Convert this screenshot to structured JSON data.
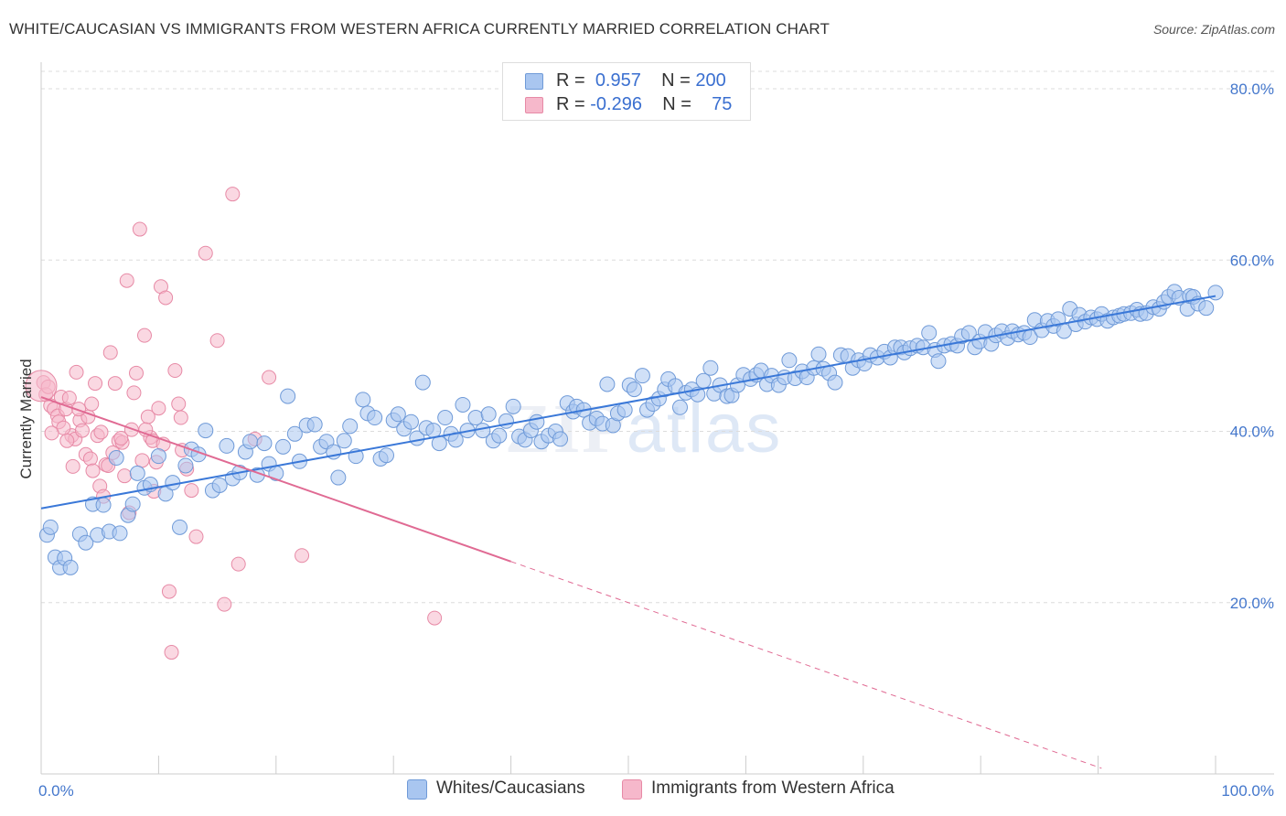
{
  "title": "WHITE/CAUCASIAN VS IMMIGRANTS FROM WESTERN AFRICA CURRENTLY MARRIED CORRELATION CHART",
  "source": "Source: ZipAtlas.com",
  "watermark": {
    "zip": "ZIP",
    "atlas": "atlas"
  },
  "legend": {
    "rows": [
      {
        "r_label": "R =",
        "r_value": "0.957",
        "n_label": "N =",
        "n_value": "200",
        "color": "#a9c6f0"
      },
      {
        "r_label": "R =",
        "r_value": "-0.296",
        "n_label": "N =",
        "n_value": "75",
        "color": "#f6b8cb"
      }
    ]
  },
  "bottom_legend": [
    {
      "label": "Whites/Caucasians",
      "color": "#a9c6f0"
    },
    {
      "label": "Immigrants from Western Africa",
      "color": "#f6b8cb"
    }
  ],
  "chart_data": {
    "type": "scatter",
    "title": "WHITE/CAUCASIAN VS IMMIGRANTS FROM WESTERN AFRICA CURRENTLY MARRIED CORRELATION CHART",
    "xlabel": "",
    "ylabel": "Currently Married",
    "xlim": [
      0,
      100
    ],
    "ylim": [
      0,
      80
    ],
    "x_tick_labels": [
      "0.0%",
      "100.0%"
    ],
    "y_ticks": [
      20,
      40,
      60,
      80
    ],
    "y_tick_labels": [
      "20.0%",
      "40.0%",
      "60.0%",
      "80.0%"
    ],
    "grid": true,
    "legend_position": "top-center",
    "colors": {
      "blue_fill": "#a9c6f0",
      "blue_stroke": "#6f9ad8",
      "blue_line": "#3a78d8",
      "pink_fill": "#f6b8cb",
      "pink_stroke": "#e78aa6",
      "pink_line": "#e06a93"
    },
    "series": [
      {
        "name": "Whites/Caucasians",
        "r": 0.957,
        "n": 200,
        "trend": {
          "x": [
            0,
            100
          ],
          "y": [
            31.0,
            55.8
          ],
          "dashed_from": null
        },
        "points": [
          [
            0.5,
            27.9
          ],
          [
            0.8,
            28.8
          ],
          [
            1.2,
            25.3
          ],
          [
            1.6,
            24.1
          ],
          [
            2.0,
            25.2
          ],
          [
            2.5,
            24.1
          ],
          [
            3.3,
            28.0
          ],
          [
            3.8,
            27.0
          ],
          [
            4.4,
            31.5
          ],
          [
            4.8,
            27.9
          ],
          [
            5.3,
            31.4
          ],
          [
            5.8,
            28.3
          ],
          [
            6.4,
            36.9
          ],
          [
            6.7,
            28.1
          ],
          [
            7.4,
            30.2
          ],
          [
            7.8,
            31.5
          ],
          [
            8.2,
            35.1
          ],
          [
            8.8,
            33.4
          ],
          [
            9.3,
            33.8
          ],
          [
            10.0,
            37.1
          ],
          [
            10.6,
            32.7
          ],
          [
            11.2,
            34.0
          ],
          [
            11.8,
            28.8
          ],
          [
            12.3,
            36.0
          ],
          [
            12.8,
            37.9
          ],
          [
            13.4,
            37.3
          ],
          [
            14.0,
            40.1
          ],
          [
            14.6,
            33.1
          ],
          [
            15.2,
            33.7
          ],
          [
            15.8,
            38.3
          ],
          [
            16.3,
            34.5
          ],
          [
            16.9,
            35.2
          ],
          [
            17.4,
            37.6
          ],
          [
            17.8,
            38.8
          ],
          [
            18.4,
            34.9
          ],
          [
            19.0,
            38.6
          ],
          [
            19.4,
            36.2
          ],
          [
            20.0,
            35.1
          ],
          [
            20.6,
            38.2
          ],
          [
            21.0,
            44.1
          ],
          [
            21.6,
            39.7
          ],
          [
            22.0,
            36.5
          ],
          [
            22.6,
            40.7
          ],
          [
            23.3,
            40.8
          ],
          [
            23.8,
            38.2
          ],
          [
            24.3,
            38.8
          ],
          [
            24.9,
            37.6
          ],
          [
            25.3,
            34.6
          ],
          [
            25.8,
            38.9
          ],
          [
            26.3,
            40.6
          ],
          [
            26.8,
            37.1
          ],
          [
            27.4,
            43.7
          ],
          [
            27.8,
            42.1
          ],
          [
            28.4,
            41.6
          ],
          [
            28.9,
            36.8
          ],
          [
            29.4,
            37.2
          ],
          [
            30.0,
            41.3
          ],
          [
            30.4,
            42.0
          ],
          [
            30.9,
            40.3
          ],
          [
            31.5,
            41.1
          ],
          [
            32.0,
            39.2
          ],
          [
            32.5,
            45.7
          ],
          [
            32.8,
            40.4
          ],
          [
            33.4,
            40.1
          ],
          [
            33.9,
            38.6
          ],
          [
            34.4,
            41.6
          ],
          [
            34.9,
            39.7
          ],
          [
            35.3,
            39.0
          ],
          [
            35.9,
            43.1
          ],
          [
            36.3,
            40.1
          ],
          [
            37.0,
            41.6
          ],
          [
            37.6,
            40.1
          ],
          [
            38.1,
            42.0
          ],
          [
            38.5,
            38.9
          ],
          [
            39.0,
            39.5
          ],
          [
            39.6,
            41.2
          ],
          [
            40.2,
            42.9
          ],
          [
            40.7,
            39.4
          ],
          [
            41.2,
            39.0
          ],
          [
            41.7,
            40.1
          ],
          [
            42.2,
            41.1
          ],
          [
            42.6,
            38.8
          ],
          [
            43.2,
            39.5
          ],
          [
            43.8,
            40.0
          ],
          [
            44.2,
            39.1
          ],
          [
            44.8,
            43.3
          ],
          [
            45.3,
            42.3
          ],
          [
            45.6,
            42.9
          ],
          [
            46.2,
            42.5
          ],
          [
            46.7,
            41.0
          ],
          [
            47.3,
            41.5
          ],
          [
            47.8,
            40.9
          ],
          [
            48.2,
            45.5
          ],
          [
            48.7,
            40.7
          ],
          [
            49.1,
            42.1
          ],
          [
            49.7,
            42.5
          ],
          [
            50.1,
            45.4
          ],
          [
            50.5,
            44.9
          ],
          [
            51.2,
            46.5
          ],
          [
            51.6,
            42.5
          ],
          [
            52.1,
            43.2
          ],
          [
            52.6,
            43.8
          ],
          [
            53.1,
            44.9
          ],
          [
            53.4,
            46.1
          ],
          [
            54.0,
            45.3
          ],
          [
            54.4,
            42.8
          ],
          [
            54.9,
            44.5
          ],
          [
            55.4,
            44.9
          ],
          [
            55.9,
            44.3
          ],
          [
            56.4,
            45.9
          ],
          [
            57.0,
            47.4
          ],
          [
            57.3,
            44.4
          ],
          [
            57.8,
            45.4
          ],
          [
            58.4,
            44.1
          ],
          [
            58.8,
            44.2
          ],
          [
            59.3,
            45.4
          ],
          [
            59.8,
            46.6
          ],
          [
            60.4,
            46.1
          ],
          [
            60.9,
            46.6
          ],
          [
            61.3,
            47.1
          ],
          [
            61.8,
            45.5
          ],
          [
            62.2,
            46.5
          ],
          [
            62.8,
            45.4
          ],
          [
            63.3,
            46.3
          ],
          [
            63.7,
            48.3
          ],
          [
            64.2,
            46.2
          ],
          [
            64.8,
            47.0
          ],
          [
            65.2,
            46.3
          ],
          [
            65.8,
            47.4
          ],
          [
            66.2,
            49.0
          ],
          [
            66.6,
            47.3
          ],
          [
            67.1,
            46.8
          ],
          [
            67.6,
            45.7
          ],
          [
            68.1,
            48.9
          ],
          [
            68.7,
            48.8
          ],
          [
            69.1,
            47.4
          ],
          [
            69.6,
            48.3
          ],
          [
            70.1,
            47.9
          ],
          [
            70.6,
            48.9
          ],
          [
            71.2,
            48.6
          ],
          [
            71.8,
            49.3
          ],
          [
            72.3,
            48.6
          ],
          [
            72.7,
            49.8
          ],
          [
            73.2,
            49.8
          ],
          [
            73.5,
            49.2
          ],
          [
            74.0,
            49.7
          ],
          [
            74.6,
            50.0
          ],
          [
            75.1,
            49.8
          ],
          [
            75.6,
            51.5
          ],
          [
            76.1,
            49.5
          ],
          [
            76.4,
            48.2
          ],
          [
            76.9,
            50.0
          ],
          [
            77.5,
            50.2
          ],
          [
            78.0,
            50.0
          ],
          [
            78.4,
            51.1
          ],
          [
            79.0,
            51.5
          ],
          [
            79.5,
            49.8
          ],
          [
            79.9,
            50.5
          ],
          [
            80.4,
            51.6
          ],
          [
            80.9,
            50.2
          ],
          [
            81.3,
            51.2
          ],
          [
            81.8,
            51.7
          ],
          [
            82.3,
            50.9
          ],
          [
            82.7,
            51.7
          ],
          [
            83.2,
            51.3
          ],
          [
            83.7,
            51.5
          ],
          [
            84.2,
            51.0
          ],
          [
            84.6,
            53.0
          ],
          [
            85.2,
            51.8
          ],
          [
            85.7,
            52.9
          ],
          [
            86.2,
            52.3
          ],
          [
            86.6,
            53.1
          ],
          [
            87.1,
            51.7
          ],
          [
            87.6,
            54.3
          ],
          [
            88.1,
            52.5
          ],
          [
            88.4,
            53.6
          ],
          [
            88.9,
            52.8
          ],
          [
            89.4,
            53.3
          ],
          [
            89.9,
            53.1
          ],
          [
            90.3,
            53.7
          ],
          [
            90.8,
            52.9
          ],
          [
            91.3,
            53.3
          ],
          [
            91.8,
            53.5
          ],
          [
            92.2,
            53.7
          ],
          [
            92.8,
            53.8
          ],
          [
            93.3,
            54.2
          ],
          [
            93.6,
            53.7
          ],
          [
            94.1,
            53.8
          ],
          [
            94.7,
            54.5
          ],
          [
            95.2,
            54.3
          ],
          [
            95.6,
            55.1
          ],
          [
            96.0,
            55.7
          ],
          [
            96.5,
            56.3
          ],
          [
            96.9,
            55.6
          ],
          [
            97.6,
            54.3
          ],
          [
            97.8,
            55.8
          ],
          [
            98.1,
            55.7
          ],
          [
            98.5,
            54.9
          ],
          [
            99.2,
            54.4
          ],
          [
            100.0,
            56.2
          ]
        ]
      },
      {
        "name": "Immigrants from Western Africa",
        "r": -0.296,
        "n": 75,
        "trend": {
          "x": [
            0,
            100
          ],
          "y": [
            44.0,
            -4.0
          ],
          "dashed_from": 40
        },
        "points": [
          [
            0.2,
            45.7
          ],
          [
            0.4,
            44.3
          ],
          [
            0.6,
            45.2
          ],
          [
            0.8,
            43.0
          ],
          [
            1.1,
            42.6
          ],
          [
            1.4,
            41.8
          ],
          [
            1.5,
            41.1
          ],
          [
            1.7,
            44.0
          ],
          [
            2.1,
            42.6
          ],
          [
            2.4,
            43.9
          ],
          [
            2.6,
            39.5
          ],
          [
            2.9,
            39.1
          ],
          [
            3.0,
            46.9
          ],
          [
            3.3,
            41.3
          ],
          [
            3.5,
            40.1
          ],
          [
            3.8,
            37.3
          ],
          [
            4.0,
            41.7
          ],
          [
            4.2,
            36.8
          ],
          [
            4.4,
            35.4
          ],
          [
            4.6,
            45.6
          ],
          [
            4.8,
            39.5
          ],
          [
            5.0,
            33.6
          ],
          [
            5.3,
            32.4
          ],
          [
            5.5,
            36.1
          ],
          [
            5.7,
            36.0
          ],
          [
            5.9,
            49.2
          ],
          [
            6.1,
            37.5
          ],
          [
            6.3,
            45.6
          ],
          [
            6.6,
            38.9
          ],
          [
            6.9,
            38.7
          ],
          [
            7.1,
            34.8
          ],
          [
            7.3,
            57.6
          ],
          [
            7.5,
            30.5
          ],
          [
            7.7,
            40.2
          ],
          [
            7.9,
            44.5
          ],
          [
            8.1,
            46.8
          ],
          [
            8.4,
            63.6
          ],
          [
            8.6,
            36.6
          ],
          [
            8.8,
            51.2
          ],
          [
            9.1,
            41.7
          ],
          [
            9.3,
            39.3
          ],
          [
            9.5,
            38.9
          ],
          [
            9.8,
            36.4
          ],
          [
            10.0,
            42.7
          ],
          [
            10.2,
            56.9
          ],
          [
            10.6,
            55.6
          ],
          [
            10.9,
            21.3
          ],
          [
            11.1,
            14.2
          ],
          [
            11.4,
            47.1
          ],
          [
            11.7,
            43.2
          ],
          [
            12.0,
            37.8
          ],
          [
            12.4,
            35.6
          ],
          [
            12.8,
            33.1
          ],
          [
            13.2,
            27.7
          ],
          [
            14.0,
            60.8
          ],
          [
            15.0,
            50.6
          ],
          [
            15.6,
            19.8
          ],
          [
            16.3,
            67.7
          ],
          [
            16.8,
            24.5
          ],
          [
            18.2,
            39.1
          ],
          [
            19.4,
            46.3
          ],
          [
            22.2,
            25.5
          ],
          [
            33.5,
            18.2
          ],
          [
            4.3,
            43.2
          ],
          [
            2.2,
            38.9
          ],
          [
            3.2,
            42.6
          ],
          [
            5.1,
            39.9
          ],
          [
            1.9,
            40.4
          ],
          [
            6.8,
            39.2
          ],
          [
            8.9,
            40.2
          ],
          [
            10.4,
            38.5
          ],
          [
            11.9,
            41.6
          ],
          [
            0.9,
            39.8
          ],
          [
            2.7,
            35.9
          ],
          [
            9.6,
            33.0
          ]
        ]
      }
    ]
  }
}
